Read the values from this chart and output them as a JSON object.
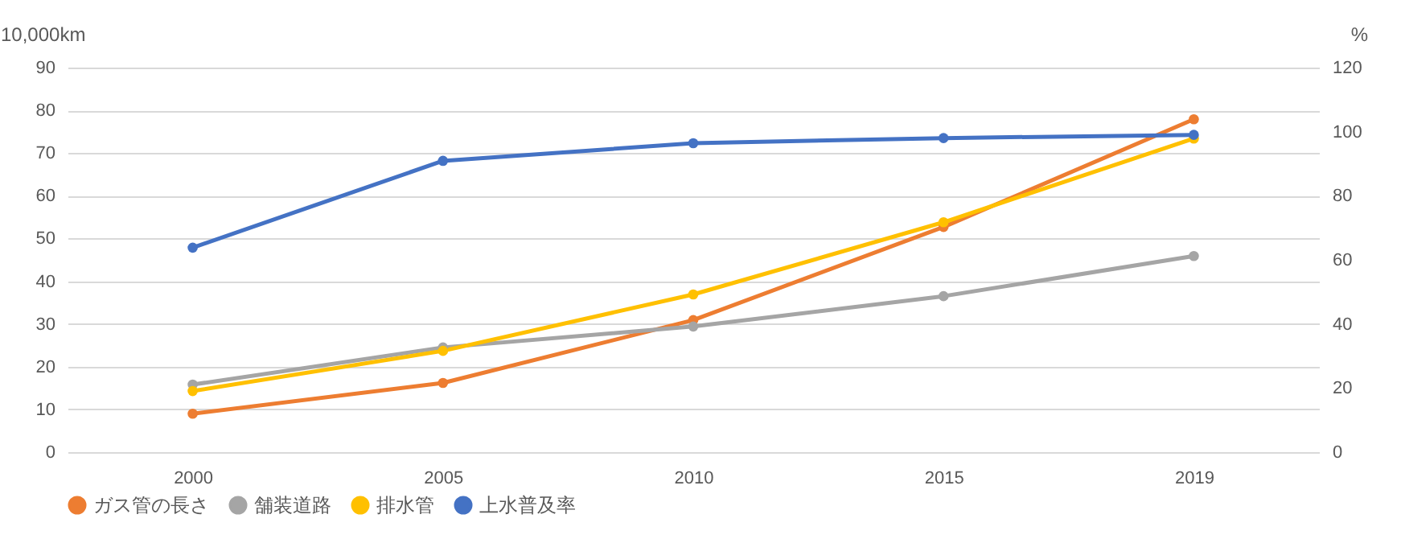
{
  "chart_data": {
    "type": "line",
    "ylabel": "10,000km",
    "y2label": "%",
    "categories": [
      "2000",
      "2005",
      "2010",
      "2015",
      "2019"
    ],
    "series": [
      {
        "name": "ガス管の長さ",
        "color": "#ed7d31",
        "values": [
          9.0,
          16.2,
          30.9,
          52.7,
          77.9
        ]
      },
      {
        "name": "舗装道路",
        "color": "#a5a5a5",
        "values": [
          15.8,
          24.5,
          29.4,
          36.5,
          45.9
        ]
      },
      {
        "name": "排水管",
        "color": "#ffc000",
        "values": [
          14.3,
          23.7,
          36.9,
          53.8,
          73.4
        ]
      },
      {
        "name": "上水普及率",
        "color": "#4472c4",
        "values": [
          63.8,
          90.9,
          96.4,
          98,
          99
        ],
        "axis": "y2"
      }
    ],
    "ylim": [
      0,
      90
    ],
    "yticks": [
      0,
      10,
      20,
      30,
      40,
      50,
      60,
      70,
      80,
      90
    ],
    "y2lim": [
      0,
      120
    ],
    "y2ticks": [
      0,
      20,
      40,
      60,
      80,
      100,
      120
    ],
    "grid": "y",
    "legend": "bottom",
    "marker": "circle",
    "line_style": "solid"
  }
}
